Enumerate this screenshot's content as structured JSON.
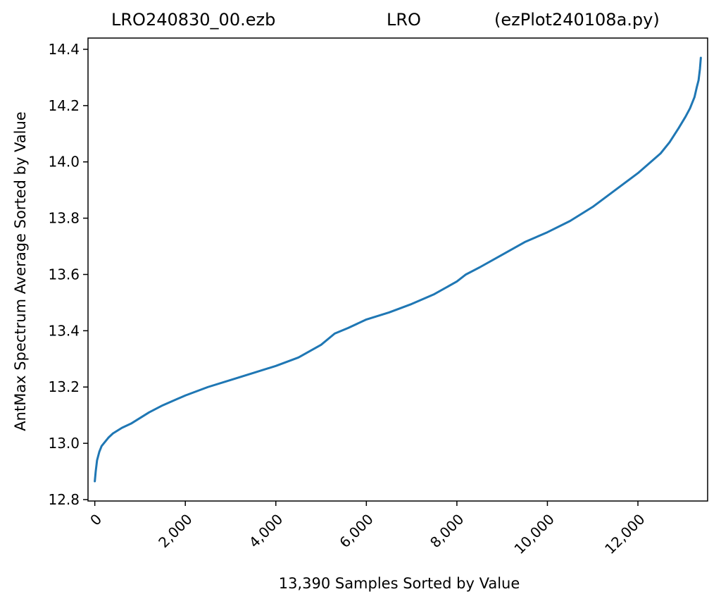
{
  "chart_data": {
    "type": "line",
    "title_parts": [
      "LRO240830_00.ezb",
      "LRO",
      "(ezPlot240108a.py)"
    ],
    "xlabel": "13,390 Samples Sorted by Value",
    "ylabel": "AntMax Spectrum Average Sorted by Value",
    "xlim": [
      -150,
      13540
    ],
    "ylim": [
      12.795,
      14.44
    ],
    "x_ticks": [
      0,
      2000,
      4000,
      6000,
      8000,
      10000,
      12000
    ],
    "x_tick_labels": [
      "0",
      "2,000",
      "4,000",
      "6,000",
      "8,000",
      "10,000",
      "12,000"
    ],
    "y_ticks": [
      12.8,
      13.0,
      13.2,
      13.4,
      13.6,
      13.8,
      14.0,
      14.2,
      14.4
    ],
    "y_tick_labels": [
      "12.8",
      "13.0",
      "13.2",
      "13.4",
      "13.6",
      "13.8",
      "14.0",
      "14.2",
      "14.4"
    ],
    "grid": false,
    "series_color": "#1f77b4",
    "series": [
      {
        "x": [
          0,
          20,
          50,
          100,
          150,
          200,
          300,
          400,
          500,
          600,
          800,
          1000,
          1200,
          1500,
          2000,
          2500,
          3000,
          3500,
          4000,
          4500,
          5000,
          5300,
          5600,
          6000,
          6500,
          7000,
          7500,
          8000,
          8200,
          8500,
          9000,
          9500,
          10000,
          10500,
          11000,
          11500,
          12000,
          12500,
          12700,
          12900,
          13050,
          13150,
          13250,
          13300,
          13340,
          13370,
          13390
        ],
        "y": [
          12.865,
          12.9,
          12.94,
          12.97,
          12.99,
          13.0,
          13.02,
          13.035,
          13.045,
          13.055,
          13.07,
          13.09,
          13.11,
          13.135,
          13.17,
          13.2,
          13.225,
          13.25,
          13.275,
          13.305,
          13.35,
          13.39,
          13.41,
          13.44,
          13.465,
          13.495,
          13.53,
          13.575,
          13.6,
          13.625,
          13.67,
          13.715,
          13.75,
          13.79,
          13.84,
          13.9,
          13.96,
          14.03,
          14.07,
          14.12,
          14.16,
          14.19,
          14.23,
          14.265,
          14.29,
          14.33,
          14.37
        ]
      }
    ]
  }
}
